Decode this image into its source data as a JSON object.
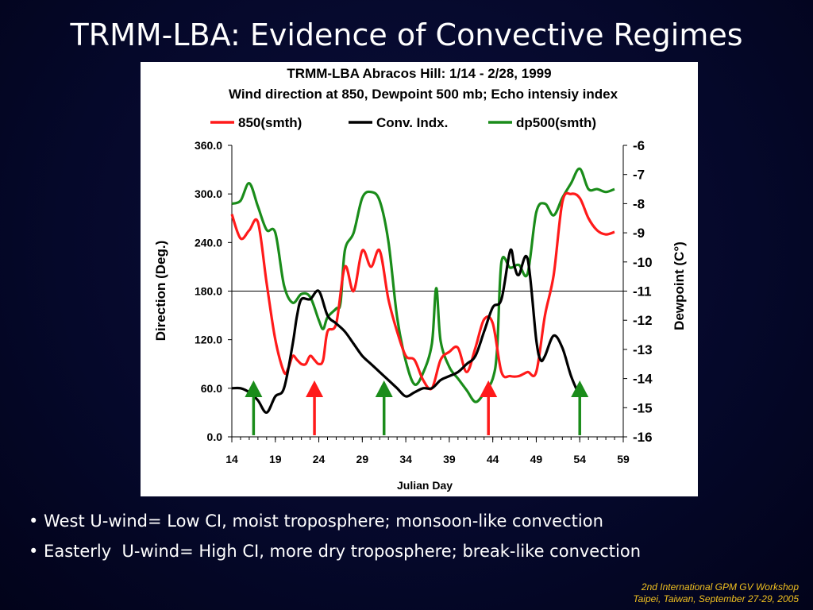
{
  "slide": {
    "title": "TRMM-LBA: Evidence of Convective Regimes",
    "bullets": [
      "• West U-wind= Low CI, moist troposphere; monsoon-like convection",
      "• Easterly  U-wind= High CI, more dry troposphere; break-like convection"
    ],
    "footer": [
      "2nd International GPM GV Workshop",
      "Taipei, Taiwan, September 27-29, 2005"
    ]
  },
  "chart_data": {
    "type": "line",
    "title": "TRMM-LBA Abracos Hill: 1/14 - 2/28, 1999",
    "subtitle": "Wind direction at 850, Dewpoint 500 mb; Echo intensiy index",
    "xlabel": "Julian Day",
    "ylabel": "Direction (Deg.)",
    "y2label": "Dewpoint (C°)",
    "xlim": [
      14,
      59
    ],
    "ylim": [
      0,
      360
    ],
    "y2lim": [
      -16,
      -6
    ],
    "xticks": [
      "14",
      "19",
      "24",
      "29",
      "34",
      "39",
      "44",
      "49",
      "54",
      "59"
    ],
    "yticks": [
      "0.0",
      "60.0",
      "120.0",
      "180.0",
      "240.0",
      "300.0",
      "360.0"
    ],
    "y2ticks": [
      "-16",
      "-15",
      "-14",
      "-13",
      "-12",
      "-11",
      "-10",
      "-9",
      "-8",
      "-7",
      "-6"
    ],
    "reference_line_y": 180,
    "legend_placement": "top",
    "series": [
      {
        "name": "850(smth)",
        "axis": "left",
        "color": "#ff1a1a",
        "x": [
          14,
          15,
          16,
          17,
          18,
          19,
          20,
          20.5,
          21,
          21.5,
          22,
          22.5,
          23,
          23.5,
          24,
          24.5,
          25,
          26,
          27,
          28,
          29,
          30,
          31,
          32,
          33,
          34,
          35,
          36,
          37,
          38,
          39,
          40,
          41,
          42,
          43,
          44,
          45,
          46,
          47,
          48,
          49,
          50,
          51,
          52,
          53,
          54,
          55,
          56,
          57,
          58
        ],
        "y": [
          275,
          245,
          255,
          265,
          190,
          120,
          80,
          85,
          100,
          95,
          90,
          90,
          100,
          95,
          90,
          95,
          130,
          140,
          210,
          180,
          230,
          210,
          230,
          170,
          130,
          100,
          95,
          70,
          60,
          95,
          105,
          110,
          80,
          110,
          145,
          140,
          80,
          75,
          75,
          80,
          80,
          150,
          200,
          290,
          300,
          295,
          270,
          255,
          250,
          253
        ]
      },
      {
        "name": "Conv. Indx.",
        "axis": "left",
        "color": "#000000",
        "x": [
          14,
          15,
          16,
          17,
          18,
          19,
          20,
          21,
          21.5,
          22,
          23,
          24,
          25,
          26,
          27,
          28,
          29,
          30,
          31,
          32,
          33,
          34,
          35,
          36,
          37,
          38,
          39,
          40,
          41,
          42,
          43,
          44,
          45,
          46,
          46.5,
          47,
          48,
          49,
          49.5,
          50,
          51,
          52,
          53,
          54
        ],
        "y": [
          60,
          60,
          55,
          45,
          30,
          50,
          60,
          115,
          150,
          170,
          170,
          180,
          150,
          140,
          130,
          115,
          100,
          90,
          80,
          70,
          60,
          50,
          55,
          60,
          60,
          70,
          75,
          80,
          90,
          100,
          130,
          160,
          170,
          230,
          210,
          200,
          220,
          120,
          95,
          100,
          125,
          110,
          75,
          50
        ]
      },
      {
        "name": "dp500(smth)",
        "axis": "right",
        "color": "#1a8c1a",
        "x": [
          14,
          15,
          16,
          17,
          18,
          19,
          20,
          21,
          22,
          23,
          24,
          24.5,
          25,
          26,
          26.5,
          27,
          28,
          29,
          30,
          31,
          32,
          33,
          34,
          35,
          36,
          37,
          37.5,
          38,
          39,
          40,
          41,
          42,
          43,
          44,
          44.5,
          45,
          46,
          47,
          48,
          49,
          50,
          51,
          52,
          53,
          54,
          55,
          56,
          57,
          58
        ],
        "y": [
          -8.0,
          -7.9,
          -7.3,
          -8.1,
          -8.9,
          -9.0,
          -10.8,
          -11.4,
          -11.1,
          -11.2,
          -12.0,
          -12.3,
          -11.9,
          -11.6,
          -11.4,
          -9.6,
          -9.0,
          -7.8,
          -7.6,
          -7.9,
          -9.3,
          -11.9,
          -13.4,
          -14.2,
          -13.8,
          -12.8,
          -10.9,
          -12.7,
          -13.6,
          -14.0,
          -14.4,
          -14.8,
          -14.5,
          -14.0,
          -13.0,
          -10.0,
          -10.2,
          -10.1,
          -10.4,
          -8.3,
          -8.0,
          -8.4,
          -7.8,
          -7.3,
          -6.8,
          -7.5,
          -7.5,
          -7.6,
          -7.5
        ]
      }
    ],
    "arrows": [
      {
        "x": 16.5,
        "color": "#1a8c1a"
      },
      {
        "x": 23.5,
        "color": "#ff1a1a"
      },
      {
        "x": 31.5,
        "color": "#1a8c1a"
      },
      {
        "x": 43.5,
        "color": "#ff1a1a"
      },
      {
        "x": 54,
        "color": "#1a8c1a"
      }
    ]
  }
}
